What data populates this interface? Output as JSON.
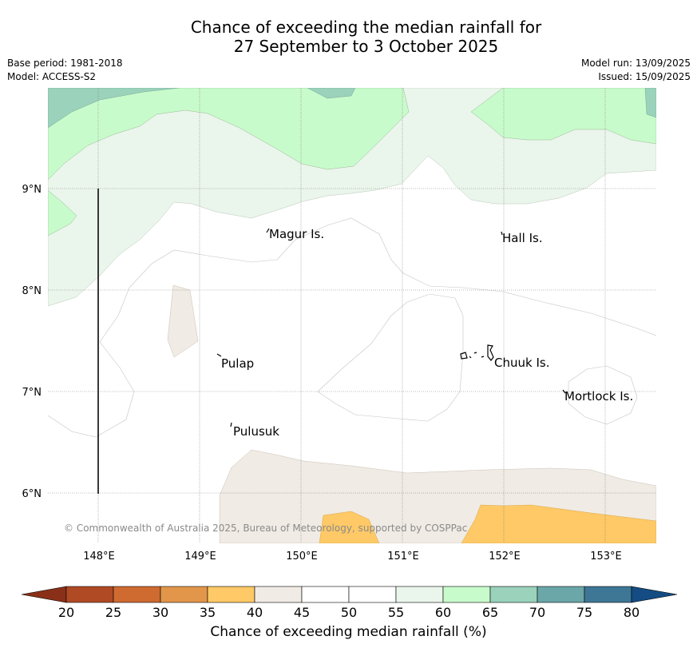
{
  "title_line1": "Chance of exceeding the median rainfall for",
  "title_line2": "27 September to 3 October 2025",
  "base_period": "Base period: 1981-2018",
  "model": "Model: ACCESS-S2",
  "model_run": "Model run: 13/09/2025",
  "issued": "Issued: 15/09/2025",
  "copyright": "© Commonwealth of Australia 2025, Bureau of Meteorology, supported by COSPPac",
  "longitude_labels": [
    "148°E",
    "149°E",
    "150°E",
    "151°E",
    "152°E",
    "153°E"
  ],
  "latitude_labels": [
    "9°N",
    "8°N",
    "7°N",
    "6°N"
  ],
  "places": [
    {
      "name": "Magur Is."
    },
    {
      "name": "Hall Is."
    },
    {
      "name": "Pulap"
    },
    {
      "name": "Chuuk Is."
    },
    {
      "name": "Mortlock Is."
    },
    {
      "name": "Pulusuk"
    }
  ],
  "colorbar": {
    "label": "Chance of exceeding median rainfall (%)",
    "ticks": [
      "20",
      "25",
      "30",
      "35",
      "40",
      "45",
      "50",
      "55",
      "60",
      "65",
      "70",
      "75",
      "80"
    ],
    "colors": [
      "#b04a25",
      "#cf6a31",
      "#e2964a",
      "#fec966",
      "#f0ebe4",
      "#ffffff",
      "#ffffff",
      "#eaf5eb",
      "#c8fbcb",
      "#9ad2bb",
      "#6ba7a8",
      "#3e7796"
    ],
    "low_extend_color": "#8a3018",
    "high_extend_color": "#144c83"
  }
}
